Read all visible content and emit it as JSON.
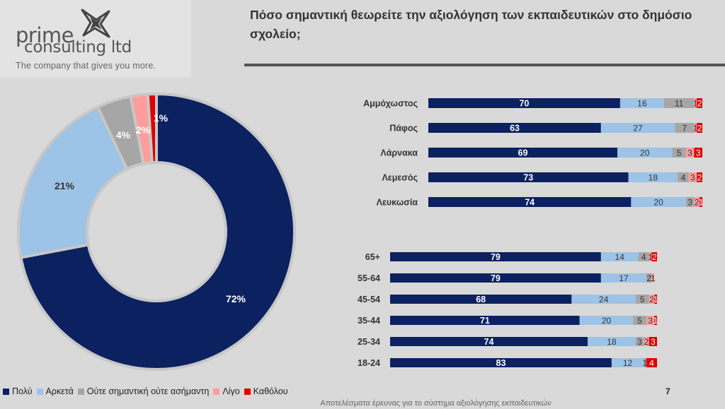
{
  "logo": {
    "line1": "prime",
    "line2": "consulting ltd",
    "tagline": "The company that gives you more."
  },
  "title": "Πόσο σημαντική θεωρείτε την αξιολόγηση των εκπαιδευτικών στο δημόσιο σχολείο;",
  "colors": {
    "Πολύ": "#0b2160",
    "Αρκετά": "#9dc3e6",
    "Ούτε σημαντική ούτε ασήμαντη": "#a6a6a6",
    "Λίγο": "#ff9c9c",
    "Καθόλου": "#e00000"
  },
  "chart_data": [
    {
      "type": "pie",
      "variant": "donut",
      "categories": [
        "Πολύ",
        "Αρκετά",
        "Ούτε σημαντική ούτε ασήμαντη",
        "Λίγο",
        "Καθόλου"
      ],
      "values": [
        72,
        21,
        4,
        2,
        1
      ],
      "labels": [
        "72%",
        "21%",
        "4%",
        "2%",
        "1%"
      ]
    },
    {
      "type": "bar",
      "orientation": "horizontal",
      "stacked": true,
      "categories": [
        "Αμμόχωστος",
        "Πάφος",
        "Λάρνακα",
        "Λεμεσός",
        "Λευκωσία"
      ],
      "series": [
        {
          "name": "Πολύ",
          "values": [
            70,
            63,
            69,
            73,
            74
          ]
        },
        {
          "name": "Αρκετά",
          "values": [
            16,
            27,
            20,
            18,
            20
          ]
        },
        {
          "name": "Ούτε σημαντική ούτε ασήμαντη",
          "values": [
            11,
            7,
            5,
            4,
            3
          ]
        },
        {
          "name": "Λίγο",
          "values": [
            1,
            1,
            3,
            3,
            2
          ]
        },
        {
          "name": "Καθόλου",
          "values": [
            2,
            2,
            3,
            2,
            1
          ]
        }
      ]
    },
    {
      "type": "bar",
      "orientation": "horizontal",
      "stacked": true,
      "categories": [
        "65+",
        "55-64",
        "45-54",
        "35-44",
        "25-34",
        "18-24"
      ],
      "series": [
        {
          "name": "Πολύ",
          "values": [
            79,
            79,
            68,
            71,
            74,
            83
          ]
        },
        {
          "name": "Αρκετά",
          "values": [
            14,
            17,
            24,
            20,
            18,
            12
          ]
        },
        {
          "name": "Ούτε σημαντική ούτε ασήμαντη",
          "values": [
            4,
            2,
            5,
            5,
            3,
            1
          ]
        },
        {
          "name": "Λίγο",
          "values": [
            1,
            1,
            2,
            3,
            2,
            0
          ]
        },
        {
          "name": "Καθόλου",
          "values": [
            2,
            0,
            1,
            1,
            3,
            4
          ]
        }
      ]
    }
  ],
  "legend": [
    "Πολύ",
    "Αρκετά",
    "Ούτε σημαντική ούτε ασήμαντη",
    "Λίγο",
    "Καθόλου"
  ],
  "page_number": "7",
  "footer": "Αποτελέσματα έρευνας για το σύστημα αξιολόγησης εκπαιδευτικών"
}
